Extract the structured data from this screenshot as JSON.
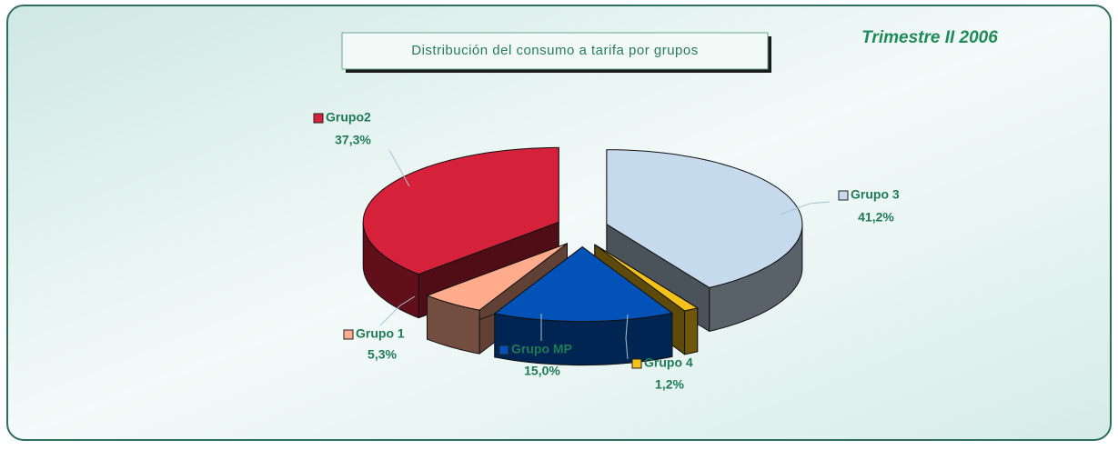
{
  "chart_data": {
    "type": "pie",
    "title": "Distribución del consumo a tarifa por grupos",
    "annotation": "Trimestre II 2006",
    "categories": [
      "Grupo 3",
      "Grupo 4",
      "Grupo MP",
      "Grupo 1",
      "Grupo2"
    ],
    "values": [
      41.2,
      1.2,
      15.0,
      5.3,
      37.3
    ],
    "value_labels": [
      "41,2%",
      "1,2%",
      "15,0%",
      "5,3%",
      "37,3%"
    ],
    "colors": [
      "#c6daee",
      "#f4c21a",
      "#0352b8",
      "#ffab8c",
      "#d6213b"
    ]
  }
}
